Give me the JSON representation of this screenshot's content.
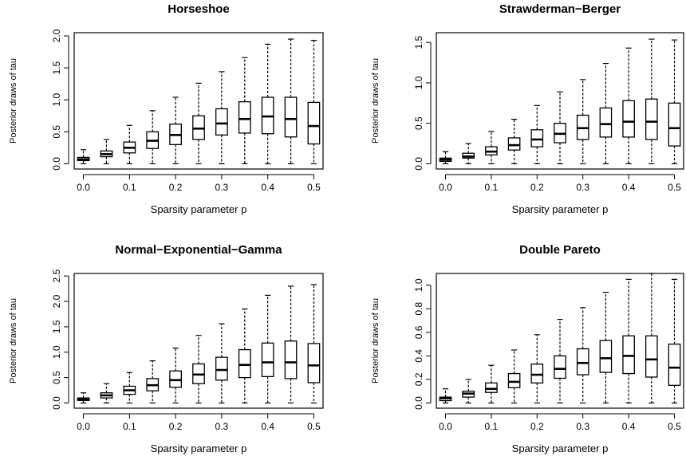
{
  "chart_data": [
    {
      "type": "boxplot",
      "title": "Horseshoe",
      "xlabel": "Sparsity parameter p",
      "ylabel": "Posterior draws of tau",
      "categories": [
        "0.0",
        "0.05",
        "0.1",
        "0.15",
        "0.2",
        "0.25",
        "0.3",
        "0.35",
        "0.4",
        "0.45",
        "0.5"
      ],
      "xticks": [
        "0.0",
        "0.1",
        "0.2",
        "0.3",
        "0.4",
        "0.5"
      ],
      "yticks": [
        "0.0",
        "0.5",
        "1.0",
        "1.5",
        "2.0"
      ],
      "ylim": [
        0,
        2.05
      ],
      "boxes": [
        {
          "min": 0.0,
          "q1": 0.05,
          "median": 0.07,
          "q3": 0.1,
          "max": 0.22
        },
        {
          "min": 0.0,
          "q1": 0.11,
          "median": 0.15,
          "q3": 0.2,
          "max": 0.38
        },
        {
          "min": 0.0,
          "q1": 0.17,
          "median": 0.25,
          "q3": 0.34,
          "max": 0.6
        },
        {
          "min": 0.0,
          "q1": 0.24,
          "median": 0.36,
          "q3": 0.5,
          "max": 0.83
        },
        {
          "min": 0.0,
          "q1": 0.3,
          "median": 0.45,
          "q3": 0.62,
          "max": 1.04
        },
        {
          "min": 0.0,
          "q1": 0.38,
          "median": 0.55,
          "q3": 0.75,
          "max": 1.26
        },
        {
          "min": 0.0,
          "q1": 0.45,
          "median": 0.63,
          "q3": 0.86,
          "max": 1.44
        },
        {
          "min": 0.0,
          "q1": 0.48,
          "median": 0.7,
          "q3": 0.97,
          "max": 1.66
        },
        {
          "min": 0.0,
          "q1": 0.47,
          "median": 0.74,
          "q3": 1.04,
          "max": 1.87
        },
        {
          "min": 0.0,
          "q1": 0.42,
          "median": 0.7,
          "q3": 1.04,
          "max": 1.95
        },
        {
          "min": 0.0,
          "q1": 0.31,
          "median": 0.59,
          "q3": 0.96,
          "max": 1.93
        }
      ]
    },
    {
      "type": "boxplot",
      "title": "Strawderman−Berger",
      "xlabel": "Sparsity parameter p",
      "ylabel": "Posterior draws of tau",
      "categories": [
        "0.0",
        "0.05",
        "0.1",
        "0.15",
        "0.2",
        "0.25",
        "0.3",
        "0.35",
        "0.4",
        "0.45",
        "0.5"
      ],
      "xticks": [
        "0.0",
        "0.1",
        "0.2",
        "0.3",
        "0.4",
        "0.5"
      ],
      "yticks": [
        "0.0",
        "0.5",
        "1.0",
        "1.5"
      ],
      "ylim": [
        0,
        1.62
      ],
      "boxes": [
        {
          "min": 0.0,
          "q1": 0.03,
          "median": 0.05,
          "q3": 0.07,
          "max": 0.15
        },
        {
          "min": 0.0,
          "q1": 0.07,
          "median": 0.09,
          "q3": 0.13,
          "max": 0.25
        },
        {
          "min": 0.0,
          "q1": 0.11,
          "median": 0.15,
          "q3": 0.21,
          "max": 0.4
        },
        {
          "min": 0.0,
          "q1": 0.17,
          "median": 0.23,
          "q3": 0.32,
          "max": 0.55
        },
        {
          "min": 0.0,
          "q1": 0.21,
          "median": 0.3,
          "q3": 0.42,
          "max": 0.72
        },
        {
          "min": 0.0,
          "q1": 0.26,
          "median": 0.37,
          "q3": 0.5,
          "max": 0.89
        },
        {
          "min": 0.0,
          "q1": 0.3,
          "median": 0.44,
          "q3": 0.6,
          "max": 1.04
        },
        {
          "min": 0.0,
          "q1": 0.33,
          "median": 0.49,
          "q3": 0.69,
          "max": 1.24
        },
        {
          "min": 0.0,
          "q1": 0.33,
          "median": 0.52,
          "q3": 0.78,
          "max": 1.43
        },
        {
          "min": 0.0,
          "q1": 0.3,
          "median": 0.52,
          "q3": 0.8,
          "max": 1.54
        },
        {
          "min": 0.0,
          "q1": 0.22,
          "median": 0.44,
          "q3": 0.75,
          "max": 1.53
        }
      ]
    },
    {
      "type": "boxplot",
      "title": "Normal−Exponential−Gamma",
      "xlabel": "Sparsity parameter p",
      "ylabel": "Posterior draws of tau",
      "categories": [
        "0.0",
        "0.05",
        "0.1",
        "0.15",
        "0.2",
        "0.25",
        "0.3",
        "0.35",
        "0.4",
        "0.45",
        "0.5"
      ],
      "xticks": [
        "0.0",
        "0.1",
        "0.2",
        "0.3",
        "0.4",
        "0.5"
      ],
      "yticks": [
        "0.0",
        "0.5",
        "1.0",
        "1.5",
        "2.0",
        "2.5"
      ],
      "ylim": [
        0,
        2.55
      ],
      "boxes": [
        {
          "min": 0.0,
          "q1": 0.05,
          "median": 0.07,
          "q3": 0.1,
          "max": 0.2
        },
        {
          "min": 0.0,
          "q1": 0.1,
          "median": 0.15,
          "q3": 0.2,
          "max": 0.38
        },
        {
          "min": 0.0,
          "q1": 0.17,
          "median": 0.25,
          "q3": 0.33,
          "max": 0.6
        },
        {
          "min": 0.0,
          "q1": 0.24,
          "median": 0.35,
          "q3": 0.48,
          "max": 0.83
        },
        {
          "min": 0.0,
          "q1": 0.31,
          "median": 0.45,
          "q3": 0.63,
          "max": 1.08
        },
        {
          "min": 0.0,
          "q1": 0.38,
          "median": 0.56,
          "q3": 0.77,
          "max": 1.33
        },
        {
          "min": 0.0,
          "q1": 0.45,
          "median": 0.65,
          "q3": 0.9,
          "max": 1.56
        },
        {
          "min": 0.0,
          "q1": 0.5,
          "median": 0.75,
          "q3": 1.05,
          "max": 1.85
        },
        {
          "min": 0.0,
          "q1": 0.52,
          "median": 0.8,
          "q3": 1.18,
          "max": 2.12
        },
        {
          "min": 0.0,
          "q1": 0.48,
          "median": 0.8,
          "q3": 1.22,
          "max": 2.3
        },
        {
          "min": 0.0,
          "q1": 0.4,
          "median": 0.74,
          "q3": 1.17,
          "max": 2.33
        }
      ]
    },
    {
      "type": "boxplot",
      "title": "Double Pareto",
      "xlabel": "Sparsity parameter p",
      "ylabel": "Posterior draws of tau",
      "categories": [
        "0.0",
        "0.05",
        "0.1",
        "0.15",
        "0.2",
        "0.25",
        "0.3",
        "0.35",
        "0.4",
        "0.45",
        "0.5"
      ],
      "xticks": [
        "0.0",
        "0.1",
        "0.2",
        "0.3",
        "0.4",
        "0.5"
      ],
      "yticks": [
        "0.0",
        "0.2",
        "0.4",
        "0.6",
        "0.8",
        "1.0"
      ],
      "ylim": [
        0,
        1.1
      ],
      "boxes": [
        {
          "min": 0.0,
          "q1": 0.02,
          "median": 0.04,
          "q3": 0.05,
          "max": 0.12
        },
        {
          "min": 0.0,
          "q1": 0.05,
          "median": 0.08,
          "q3": 0.1,
          "max": 0.2
        },
        {
          "min": 0.0,
          "q1": 0.09,
          "median": 0.12,
          "q3": 0.17,
          "max": 0.32
        },
        {
          "min": 0.0,
          "q1": 0.13,
          "median": 0.18,
          "q3": 0.25,
          "max": 0.45
        },
        {
          "min": 0.0,
          "q1": 0.17,
          "median": 0.24,
          "q3": 0.33,
          "max": 0.58
        },
        {
          "min": 0.0,
          "q1": 0.21,
          "median": 0.29,
          "q3": 0.4,
          "max": 0.71
        },
        {
          "min": 0.0,
          "q1": 0.24,
          "median": 0.34,
          "q3": 0.46,
          "max": 0.81
        },
        {
          "min": 0.0,
          "q1": 0.26,
          "median": 0.38,
          "q3": 0.53,
          "max": 0.94
        },
        {
          "min": 0.0,
          "q1": 0.25,
          "median": 0.4,
          "q3": 0.57,
          "max": 1.05
        },
        {
          "min": 0.0,
          "q1": 0.22,
          "median": 0.37,
          "q3": 0.57,
          "max": 1.1
        },
        {
          "min": 0.0,
          "q1": 0.15,
          "median": 0.3,
          "q3": 0.5,
          "max": 1.05
        }
      ]
    }
  ]
}
